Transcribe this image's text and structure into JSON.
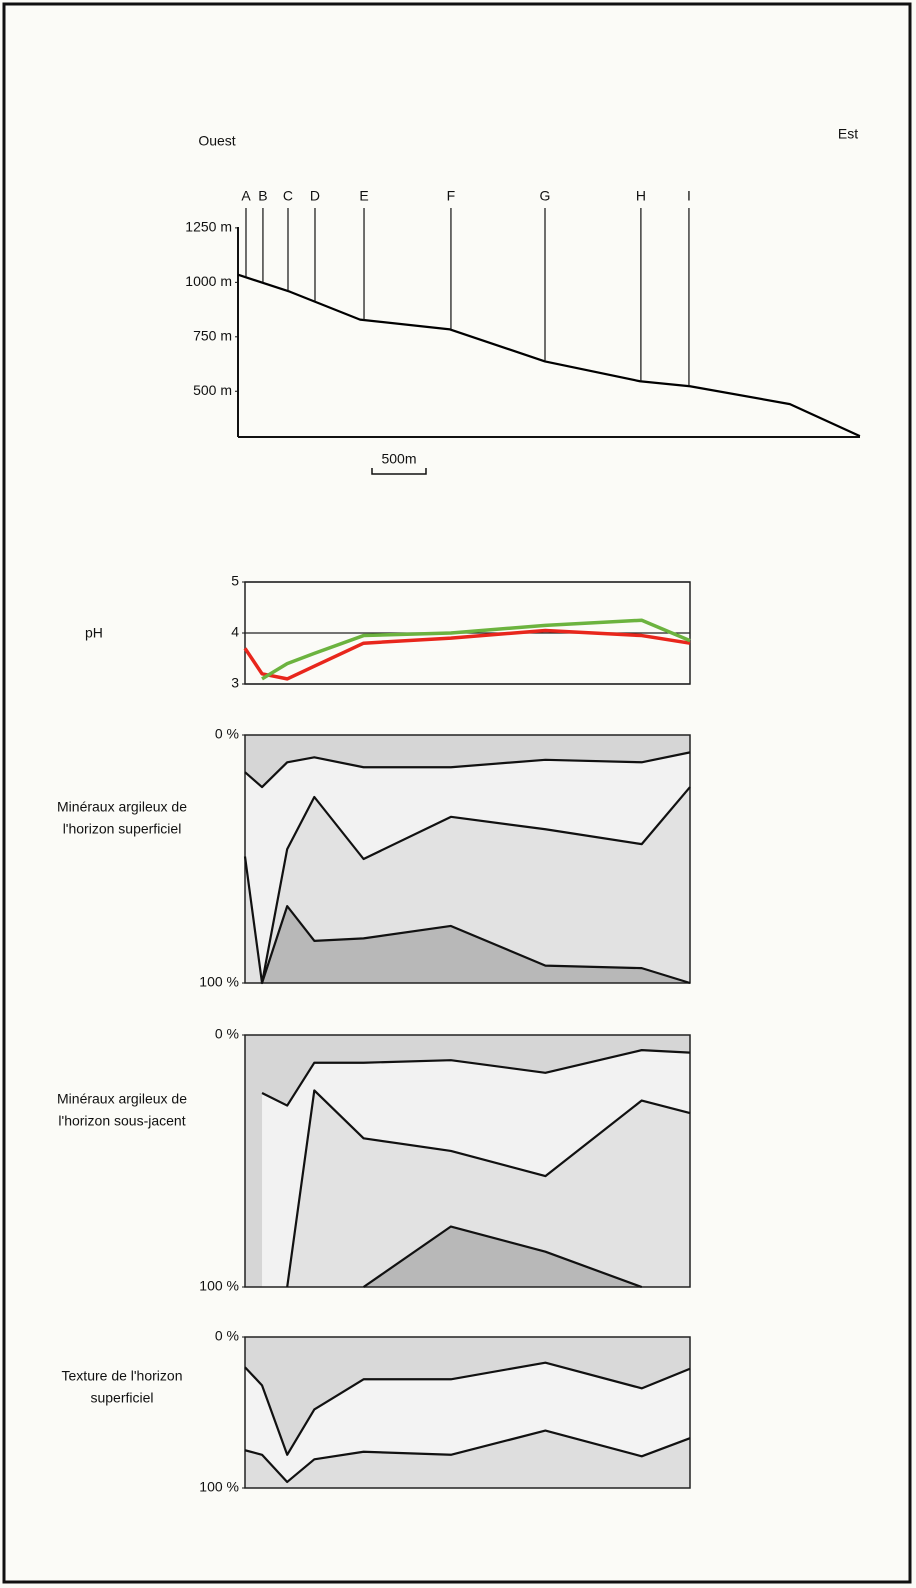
{
  "chart_data": [
    {
      "type": "line",
      "west_label": "Ouest",
      "east_label": "Est",
      "x": [
        0,
        481,
        1130,
        1963,
        2843,
        3722,
        4185,
        5111,
        5759
      ],
      "series": [
        {
          "color": "#000000",
          "values": [
            1035,
            957,
            829,
            784,
            637,
            546,
            523,
            441,
            294
          ]
        }
      ],
      "xlim": [
        0,
        5760
      ],
      "ylim": [
        290,
        1300
      ],
      "yticks": [
        {
          "value": 1250,
          "label": "1250 m"
        },
        {
          "value": 1000,
          "label": "1000 m"
        },
        {
          "value": 750,
          "label": "750 m"
        },
        {
          "value": 500,
          "label": "500 m"
        }
      ],
      "sites": [
        {
          "label": "A",
          "x": 74
        },
        {
          "label": "B",
          "x": 231
        },
        {
          "label": "C",
          "x": 463
        },
        {
          "label": "D",
          "x": 713
        },
        {
          "label": "E",
          "x": 1167
        },
        {
          "label": "F",
          "x": 1972
        },
        {
          "label": "G",
          "x": 2843
        },
        {
          "label": "H",
          "x": 3731
        },
        {
          "label": "I",
          "x": 4176
        }
      ],
      "scale_bar": {
        "label": "500m",
        "length": 500
      }
    },
    {
      "type": "line",
      "title": "pH",
      "x": [
        74,
        231,
        463,
        713,
        1167,
        1972,
        2843,
        3731,
        4176
      ],
      "series": [
        {
          "color": "#e8261c",
          "values": [
            3.7,
            3.2,
            3.1,
            3.35,
            3.8,
            3.9,
            4.05,
            3.95,
            3.8
          ]
        },
        {
          "color": "#6cb33f",
          "values": [
            null,
            3.1,
            3.4,
            3.6,
            3.95,
            4.0,
            4.15,
            4.25,
            3.85
          ]
        }
      ],
      "xlim": [
        74,
        4176
      ],
      "ylim": [
        3,
        5
      ],
      "yticks": [
        3,
        4,
        5
      ],
      "grid": true
    },
    {
      "type": "area",
      "title": [
        "Minéraux argileux de",
        "l'horizon superficiel"
      ],
      "x": [
        74,
        231,
        463,
        713,
        1167,
        1972,
        2843,
        3731,
        4176
      ],
      "background": "#d6d6d6",
      "series": [
        {
          "color": "#f2f2f2",
          "values": [
            15,
            21,
            11,
            9,
            13,
            13,
            10,
            11,
            7
          ]
        },
        {
          "color": "#e2e2e2",
          "values": [
            49,
            100,
            46,
            25,
            50,
            33,
            38,
            44,
            21
          ]
        },
        {
          "color": "#b8b8b8",
          "values": [
            null,
            100,
            69,
            83,
            82,
            77,
            93,
            94,
            100
          ]
        }
      ],
      "xlim": [
        74,
        4176
      ],
      "ylim": [
        100,
        0
      ],
      "yticks": [
        {
          "value": 0,
          "label": "0 %"
        },
        {
          "value": 100,
          "label": "100 %"
        }
      ]
    },
    {
      "type": "area",
      "title": [
        "Minéraux argileux de",
        "l'horizon sous-jacent"
      ],
      "x": [
        74,
        231,
        463,
        713,
        1167,
        1972,
        2843,
        3731,
        4176
      ],
      "background": "#d6d6d6",
      "series": [
        {
          "color": "#f2f2f2",
          "values": [
            null,
            23,
            28,
            11,
            11,
            10,
            15,
            6,
            7
          ]
        },
        {
          "color": "#e2e2e2",
          "values": [
            null,
            null,
            100,
            22,
            41,
            46,
            56,
            26,
            31
          ]
        },
        {
          "color": "#b8b8b8",
          "values": [
            null,
            null,
            null,
            null,
            100,
            76,
            86,
            100,
            null
          ]
        }
      ],
      "xlim": [
        74,
        4176
      ],
      "ylim": [
        100,
        0
      ],
      "yticks": [
        {
          "value": 0,
          "label": "0 %"
        },
        {
          "value": 100,
          "label": "100 %"
        }
      ]
    },
    {
      "type": "area",
      "title": [
        "Texture de l'horizon",
        "superficiel"
      ],
      "x": [
        74,
        231,
        463,
        713,
        1167,
        1972,
        2843,
        3731,
        4176
      ],
      "background": "#d9d9d9",
      "series": [
        {
          "color": "#f3f3f3",
          "values": [
            20,
            32,
            78,
            48,
            28,
            28,
            17,
            34,
            21
          ]
        },
        {
          "color": "#dedede",
          "values": [
            75,
            78,
            96,
            81,
            76,
            78,
            62,
            79,
            67
          ]
        }
      ],
      "xlim": [
        74,
        4176
      ],
      "ylim": [
        100,
        0
      ],
      "yticks": [
        {
          "value": 0,
          "label": "0 %"
        },
        {
          "value": 100,
          "label": "100 %"
        }
      ]
    }
  ]
}
